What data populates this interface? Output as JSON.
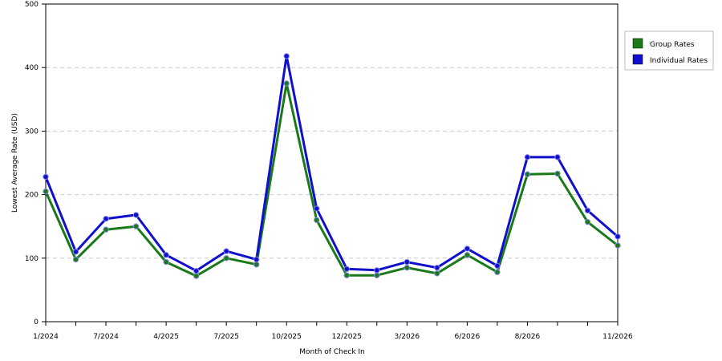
{
  "chart_data": {
    "type": "line",
    "xlabel": "Month of Check In",
    "ylabel": "Lowest Average Rate (USD)",
    "ylim": [
      0,
      500
    ],
    "y_ticks": [
      0,
      100,
      200,
      300,
      400,
      500
    ],
    "x_tick_labels": [
      "1/2024",
      "7/2024",
      "4/2025",
      "7/2025",
      "10/2025",
      "12/2025",
      "3/2026",
      "6/2026",
      "8/2026",
      "11/2026"
    ],
    "x_tick_label_index": [
      0,
      2,
      4,
      6,
      8,
      10,
      12,
      14,
      16,
      19
    ],
    "point_count": 20,
    "grid": "horizontal dashed",
    "legend_position": "right",
    "series": [
      {
        "name": "Group Rates",
        "color": "#1a7a1a",
        "values": [
          205,
          98,
          145,
          150,
          94,
          72,
          100,
          90,
          375,
          160,
          73,
          73,
          85,
          76,
          105,
          78,
          232,
          233,
          157,
          120
        ]
      },
      {
        "name": "Individual Rates",
        "color": "#1010cc",
        "values": [
          228,
          110,
          162,
          168,
          105,
          80,
          111,
          98,
          418,
          178,
          83,
          81,
          94,
          85,
          115,
          88,
          259,
          259,
          175,
          134
        ]
      }
    ]
  }
}
